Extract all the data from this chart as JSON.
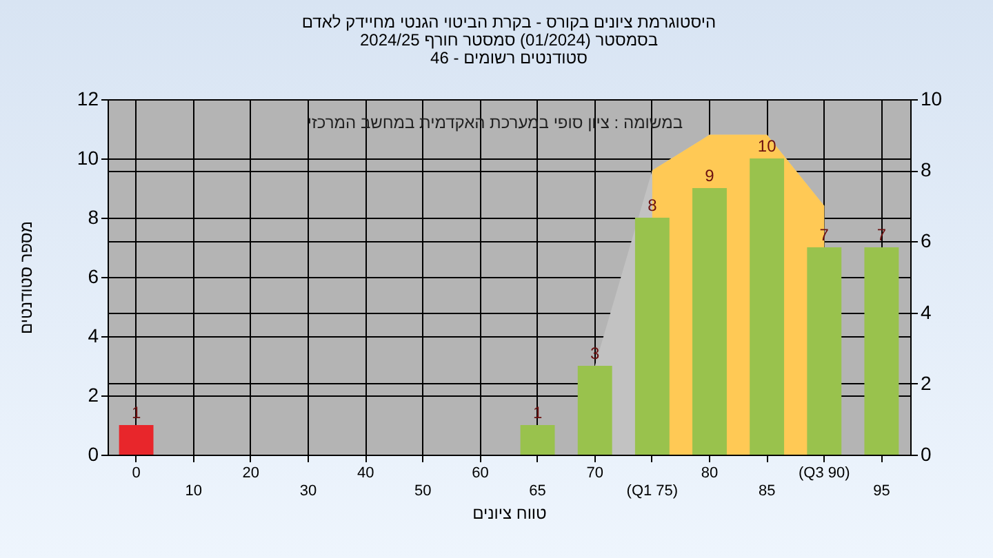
{
  "chart_data": {
    "type": "bar",
    "title": "היסטוגרמת ציונים בקורס - בקרת הביטוי הגנטי מחיידק לאדם",
    "subtitle": "בסמסטר  (01/2024)  סמסטר חורף 2024/25\nסטודנטים רשומים - 46",
    "xlabel": "טווח ציונים",
    "ylabel": "מספר סטודנטים",
    "annotations": [
      "במשומה : ציון סופי במערכת האקדמית במחשב המרכזי"
    ],
    "categories": [
      "0",
      "10",
      "20",
      "30",
      "40",
      "50",
      "60",
      "65",
      "70",
      "(Q1 75)",
      "80",
      "85",
      "(Q3 90)",
      "95"
    ],
    "series": [
      {
        "type": "area",
        "axis": "y2",
        "color": "#c2c2c2",
        "values": [
          null,
          null,
          null,
          null,
          null,
          null,
          null,
          null,
          2.5,
          8,
          9,
          9,
          7,
          null
        ]
      },
      {
        "type": "area",
        "axis": "y2",
        "color": "#ffc955",
        "values": [
          null,
          null,
          null,
          null,
          null,
          null,
          null,
          null,
          null,
          8,
          9,
          9,
          7,
          null
        ]
      },
      {
        "colors": [
          "#e8262b",
          "#99c24d",
          "#99c24d",
          "#99c24d",
          "#99c24d",
          "#99c24d",
          "#99c24d",
          "#99c24d",
          "#99c24d",
          "#99c24d",
          "#99c24d",
          "#99c24d",
          "#99c24d",
          "#99c24d"
        ],
        "values": [
          1,
          null,
          null,
          null,
          null,
          null,
          null,
          1,
          3,
          8,
          9,
          10,
          7,
          7
        ],
        "value_labels": [
          "1",
          null,
          null,
          null,
          null,
          null,
          null,
          "1",
          "3",
          "8",
          "9",
          "10",
          "7",
          "7"
        ]
      }
    ],
    "ylim": [
      0,
      12
    ],
    "yticks": [
      0,
      2,
      4,
      6,
      8,
      10,
      12
    ],
    "y2lim": [
      0,
      10
    ],
    "y2ticks": [
      0,
      2,
      4,
      6,
      8,
      10
    ],
    "grid": true
  }
}
